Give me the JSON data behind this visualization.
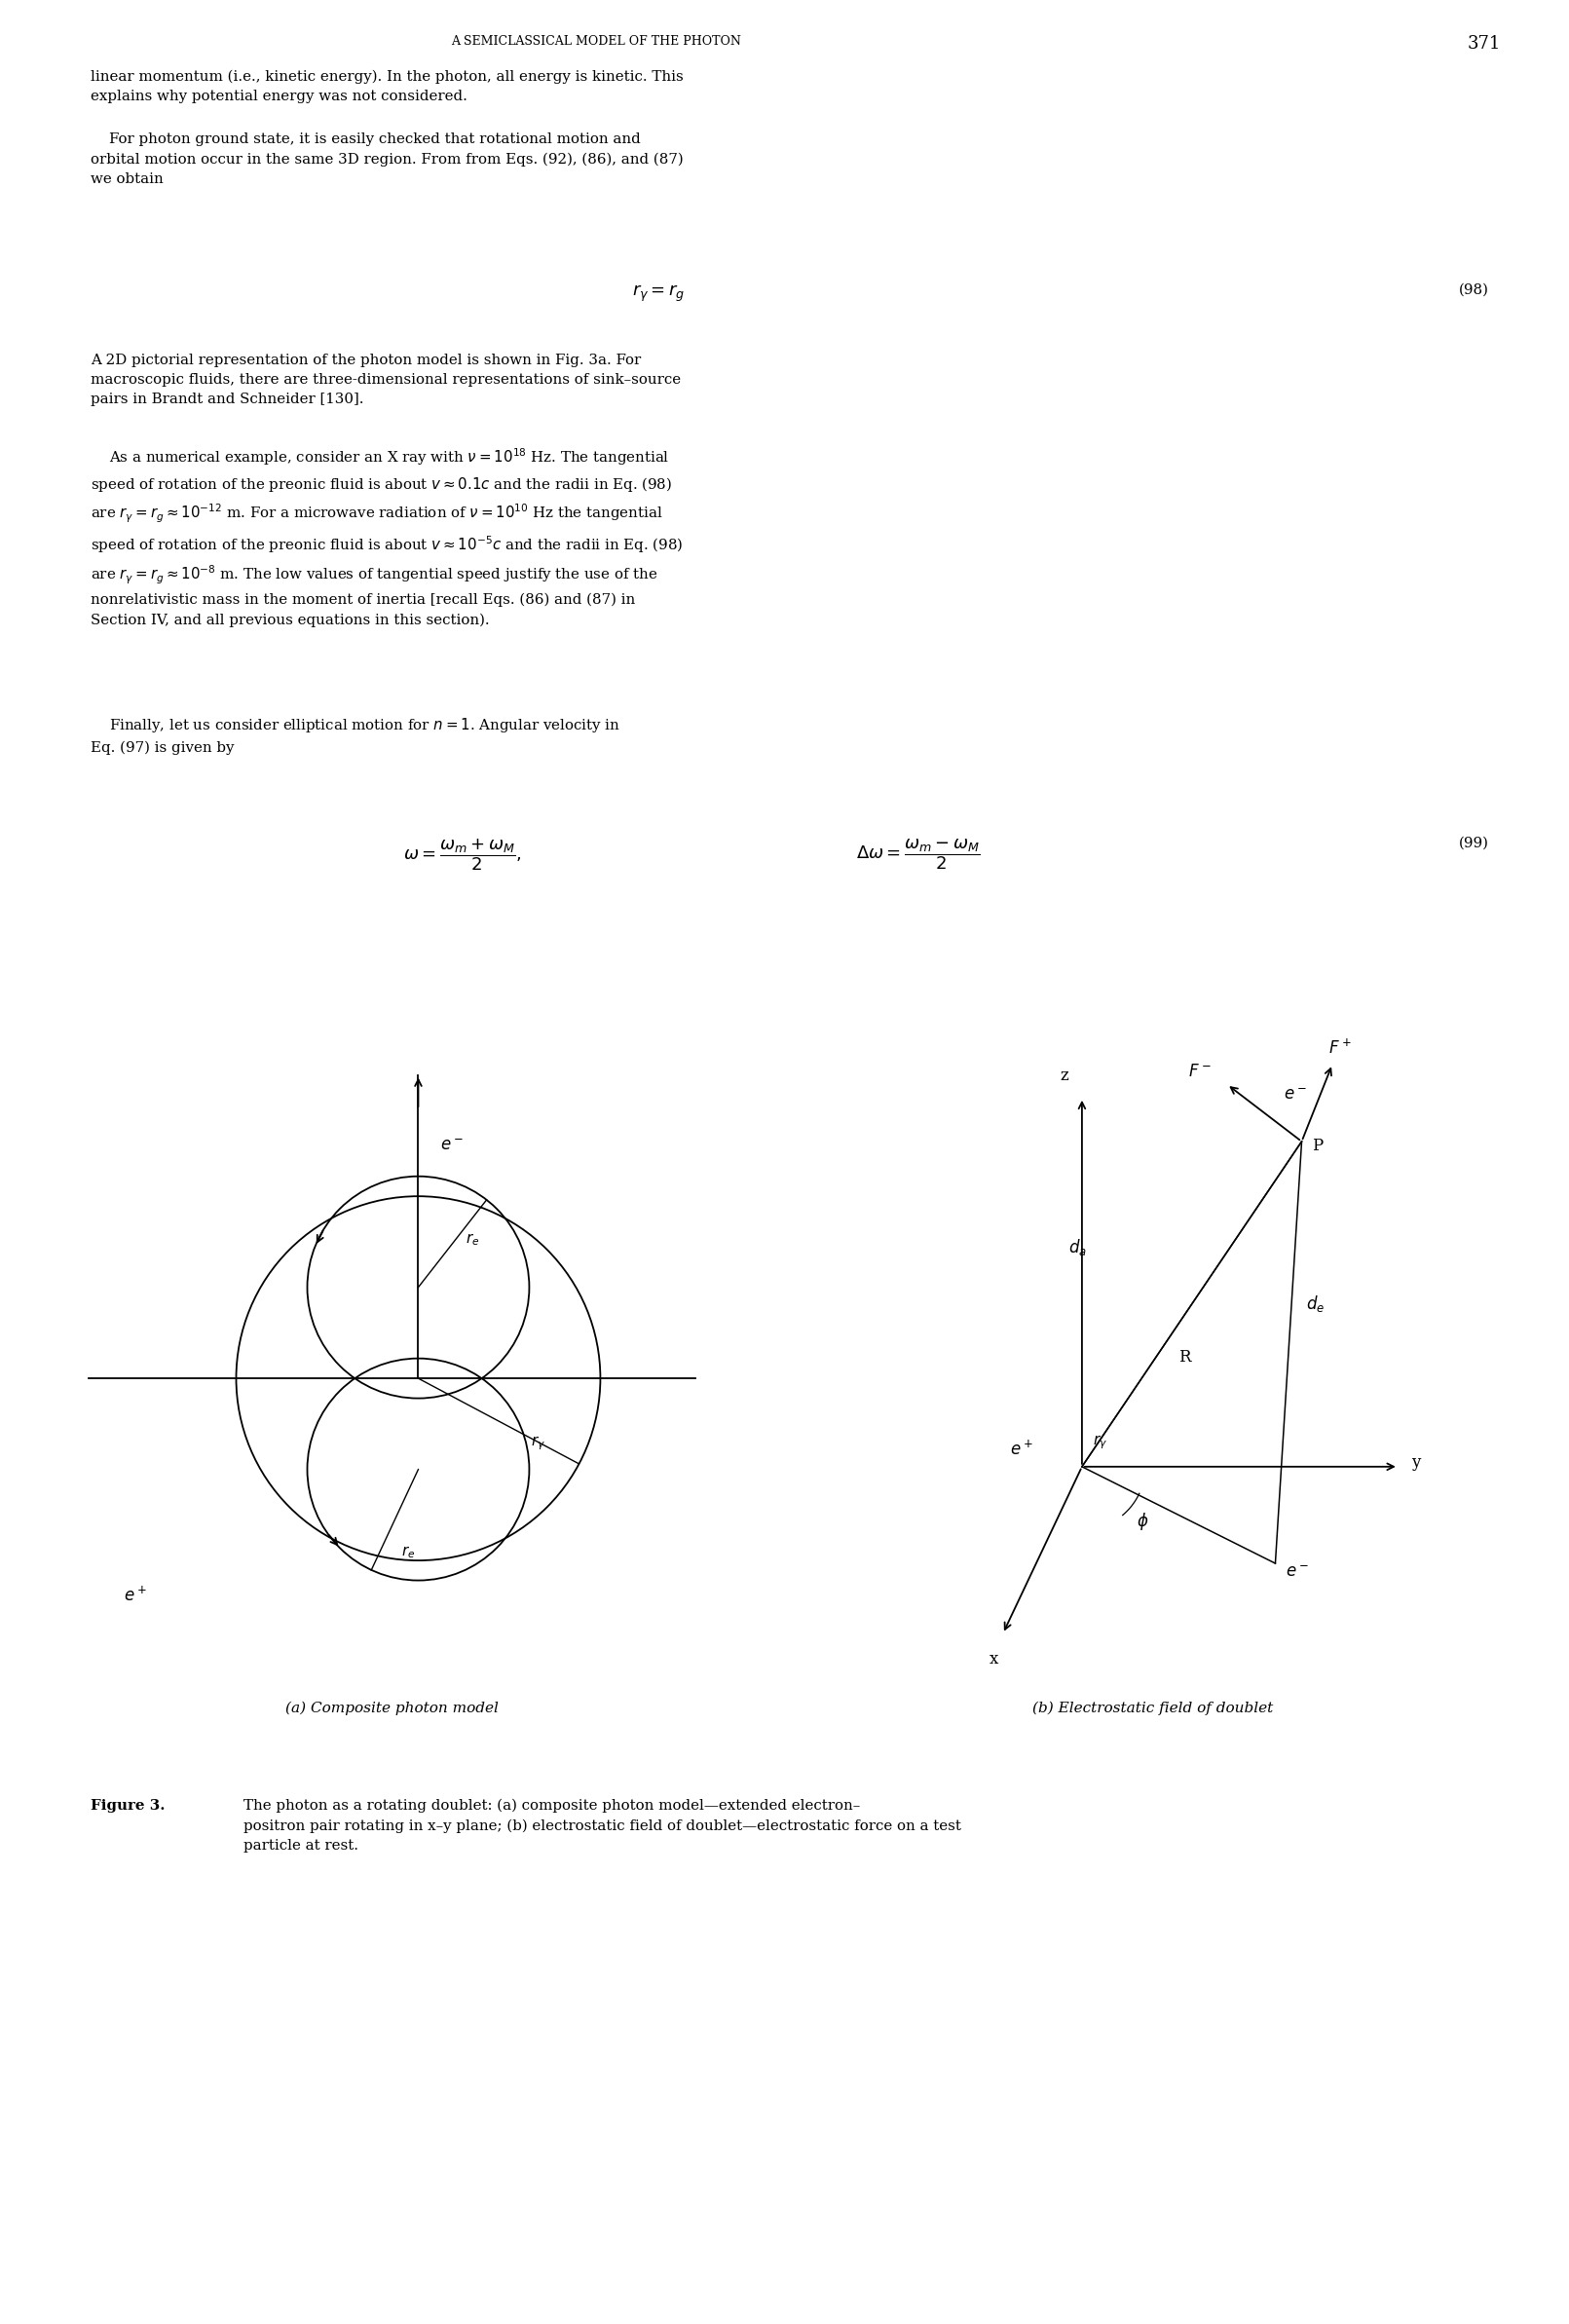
{
  "page_header": "A SEMICLASSICAL MODEL OF THE PHOTON",
  "page_number": "371",
  "background_color": "#ffffff",
  "text_color": "#000000",
  "subplot_a_label": "(a) Composite photon model",
  "subplot_b_label": "(b) Electrostatic field of doublet",
  "fig_caption_bold": "Figure 3.",
  "fig_caption_text": "   The photon as a rotating doublet: (a) composite photon model—extended electron–positron pair rotating in x–y plane; (b) electrostatic field of doublet—electrostatic force on a test particle at rest."
}
